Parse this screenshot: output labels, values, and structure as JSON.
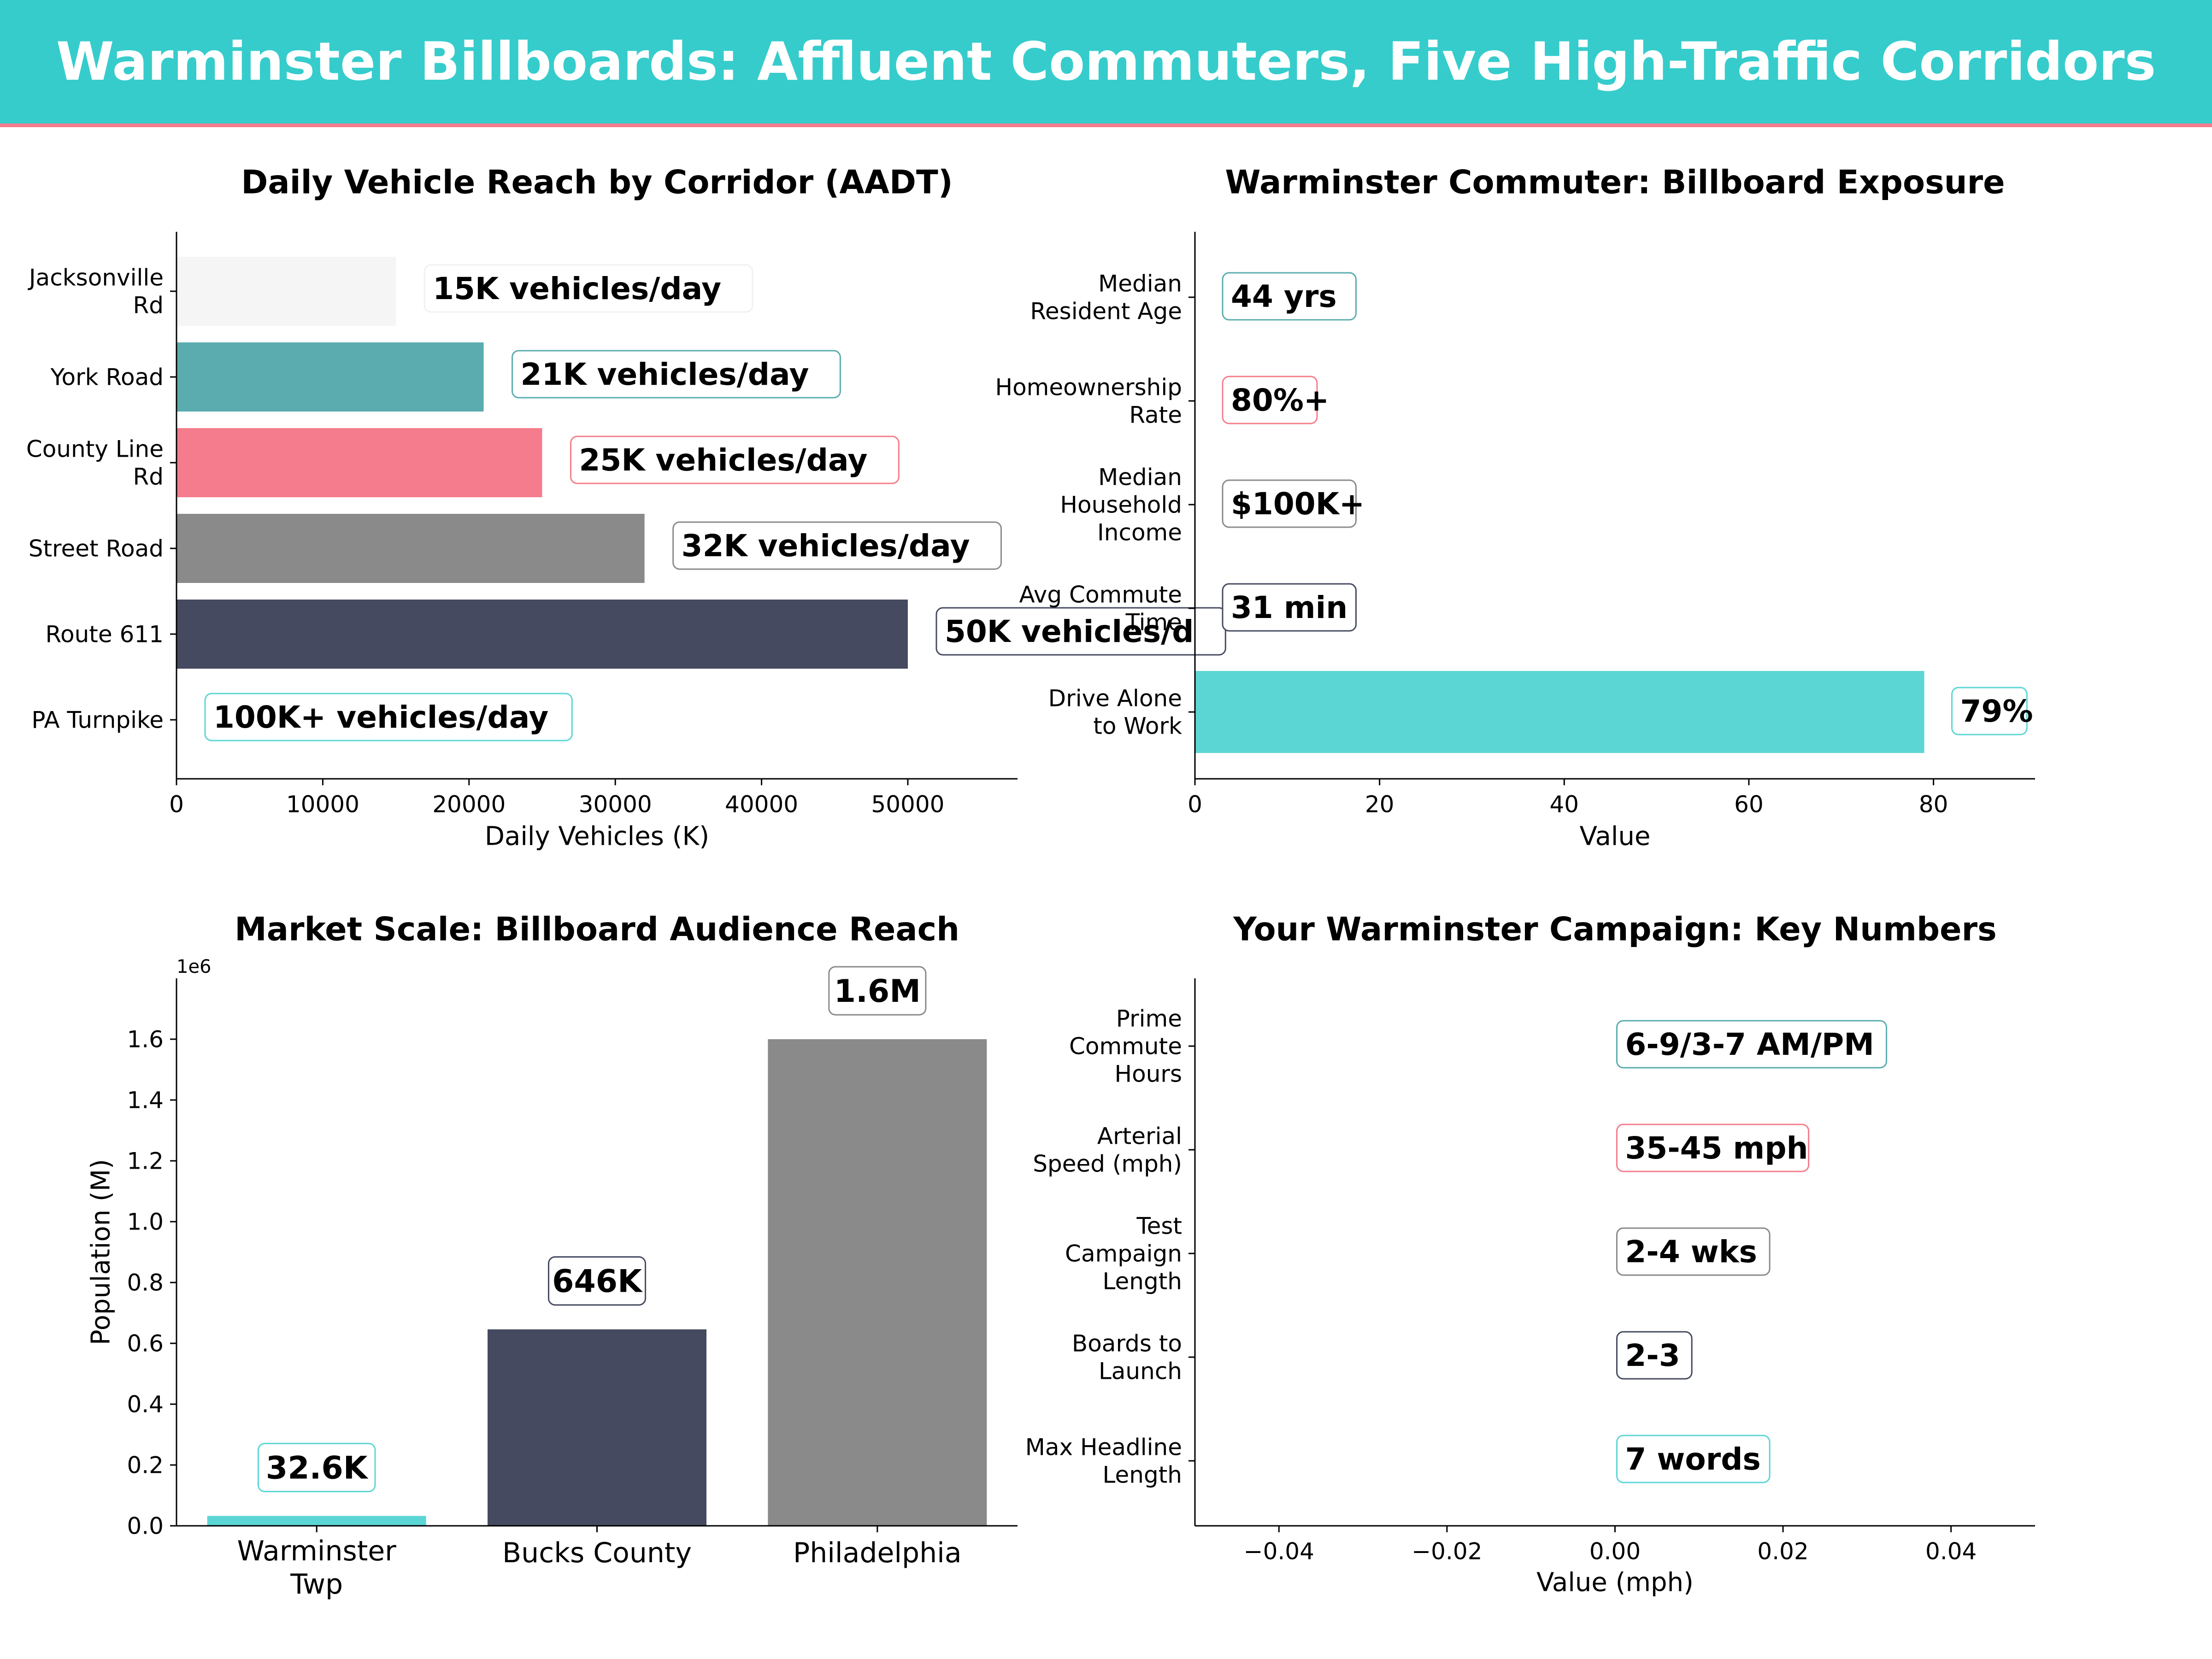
{
  "title": "Warminster Billboards: Affluent Commuters, Five High-Traffic Corridors",
  "colors": {
    "banner": "#36CCCC",
    "banner_rule": "#F47C8C",
    "teal_dark": "#5AACAE",
    "pink": "#F47C8C",
    "gray": "#8A8A8A",
    "navy": "#454A60",
    "cyan": "#5CD6D4",
    "light": "#F5F5F5"
  },
  "chart_data": [
    {
      "type": "bar",
      "orientation": "horizontal",
      "title": "Daily Vehicle Reach by Corridor (AADT)",
      "xlabel": "Daily Vehicles (K)",
      "ylabel": "",
      "categories": [
        "Jacksonville\nRd",
        "York Road",
        "County Line\nRd",
        "Street Road",
        "Route 611",
        "PA Turnpike"
      ],
      "values": [
        15000,
        21000,
        25000,
        32000,
        50000,
        0
      ],
      "labels": [
        "15K vehicles/day",
        "21K vehicles/day",
        "25K vehicles/day",
        "32K vehicles/day",
        "50K vehicles/d",
        "100K+ vehicles/day"
      ],
      "colors": [
        "#F5F5F5",
        "#5AACAE",
        "#F47C8C",
        "#8A8A8A",
        "#454A60",
        "#5CD6D4"
      ],
      "xlim": [
        0,
        57500
      ],
      "xticks": [
        0,
        10000,
        20000,
        30000,
        40000,
        50000
      ],
      "grid": false
    },
    {
      "type": "bar",
      "orientation": "horizontal",
      "title": "Warminster Commuter: Billboard Exposure",
      "xlabel": "Value",
      "ylabel": "",
      "categories": [
        "Median\nResident Age",
        "Homeownership\nRate",
        "Median\nHousehold\nIncome",
        "Avg Commute\nTime",
        "Drive Alone\nto Work"
      ],
      "values": [
        0,
        0,
        0,
        0,
        79
      ],
      "labels": [
        "44 yrs",
        "80%+",
        "$100K+",
        "31 min",
        "79%"
      ],
      "colors": [
        "#5AACAE",
        "#F47C8C",
        "#8A8A8A",
        "#454A60",
        "#5CD6D4"
      ],
      "xlim": [
        0,
        91
      ],
      "xticks": [
        0,
        20,
        40,
        60,
        80
      ],
      "grid": false
    },
    {
      "type": "bar",
      "orientation": "vertical",
      "title": "Market Scale: Billboard Audience Reach",
      "xlabel": "",
      "ylabel": "Population (M)",
      "offset_label": "1e6",
      "categories": [
        "Warminster\nTwp",
        "Bucks County",
        "Philadelphia"
      ],
      "values": [
        32600,
        646000,
        1600000
      ],
      "labels": [
        "32.6K",
        "646K",
        "1.6M"
      ],
      "colors": [
        "#5CD6D4",
        "#454A60",
        "#8A8A8A"
      ],
      "ylim": [
        0,
        1.8
      ],
      "yticks": [
        "0.0",
        "0.2",
        "0.4",
        "0.6",
        "0.8",
        "1.0",
        "1.2",
        "1.4",
        "1.6"
      ],
      "grid": false
    },
    {
      "type": "bar",
      "orientation": "horizontal",
      "title": "Your Warminster Campaign: Key Numbers",
      "xlabel": "Value (mph)",
      "ylabel": "",
      "categories": [
        "Prime\nCommute\nHours",
        "Arterial\nSpeed (mph)",
        "Test\nCampaign\nLength",
        "Boards to\nLaunch",
        "Max Headline\nLength"
      ],
      "values": [
        0,
        0,
        0,
        0,
        0
      ],
      "labels": [
        "6-9/3-7 AM/PM",
        "35-45 mph",
        "2-4 wks",
        "2-3",
        "7 words"
      ],
      "colors": [
        "#5AACAE",
        "#F47C8C",
        "#8A8A8A",
        "#454A60",
        "#5CD6D4"
      ],
      "xlim": [
        -0.05,
        0.05
      ],
      "xticks": [
        "−0.04",
        "−0.02",
        "0.00",
        "0.02",
        "0.04"
      ],
      "grid": false
    }
  ]
}
